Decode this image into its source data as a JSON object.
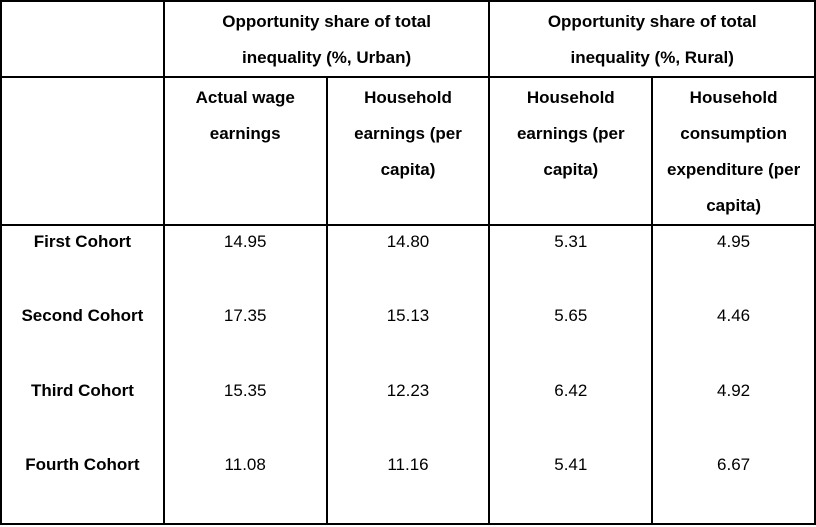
{
  "table": {
    "group_headers": {
      "urban": "Opportunity share of total\ninequality (%, Urban)",
      "rural": "Opportunity share of total\ninequality (%, Rural)"
    },
    "column_headers": [
      "Actual wage\nearnings",
      "Household\nearnings (per\ncapita)",
      "Household\nearnings (per\ncapita)",
      "Household\nconsumption\nexpenditure (per\ncapita)"
    ],
    "rows": [
      {
        "label": "First Cohort",
        "values": [
          "14.95",
          "14.80",
          "5.31",
          "4.95"
        ]
      },
      {
        "label": "Second Cohort",
        "values": [
          "17.35",
          "15.13",
          "5.65",
          "4.46"
        ]
      },
      {
        "label": "Third Cohort",
        "values": [
          "15.35",
          "12.23",
          "6.42",
          "4.92"
        ]
      },
      {
        "label": "Fourth Cohort",
        "values": [
          "11.08",
          "11.16",
          "5.41",
          "6.67"
        ]
      }
    ]
  },
  "chart_data": {
    "type": "table",
    "column_groups": [
      "Opportunity share of total inequality (%, Urban)",
      "Opportunity share of total inequality (%, Rural)"
    ],
    "columns": [
      "Actual wage earnings",
      "Household earnings (per capita)",
      "Household earnings (per capita)",
      "Household consumption expenditure (per capita)"
    ],
    "row_labels": [
      "First Cohort",
      "Second Cohort",
      "Third Cohort",
      "Fourth Cohort"
    ],
    "values": [
      [
        14.95,
        14.8,
        5.31,
        4.95
      ],
      [
        17.35,
        15.13,
        5.65,
        4.46
      ],
      [
        15.35,
        12.23,
        6.42,
        4.92
      ],
      [
        11.08,
        11.16,
        5.41,
        6.67
      ]
    ]
  }
}
